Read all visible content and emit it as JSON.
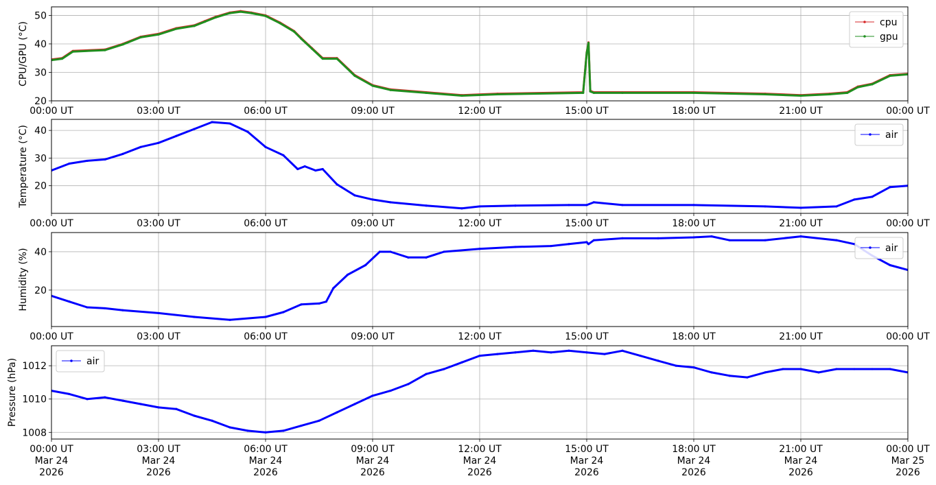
{
  "chart_data": [
    {
      "type": "line",
      "ylabel": "CPU/GPU (°C)",
      "ylim": [
        20,
        53
      ],
      "yticks": [
        20,
        30,
        40,
        50
      ],
      "grid": true,
      "legend_position": "top-right",
      "x_tick_labels": [
        [
          "00:00 UT"
        ],
        [
          "03:00 UT"
        ],
        [
          "06:00 UT"
        ],
        [
          "09:00 UT"
        ],
        [
          "12:00 UT"
        ],
        [
          "15:00 UT"
        ],
        [
          "18:00 UT"
        ],
        [
          "21:00 UT"
        ],
        [
          "00:00 UT"
        ]
      ],
      "x_hours": [
        0,
        0.3,
        0.6,
        1.5,
        2.0,
        2.5,
        3.0,
        3.5,
        4.0,
        4.3,
        4.6,
        5.0,
        5.3,
        5.6,
        6.0,
        6.4,
        6.8,
        7.0,
        7.3,
        7.6,
        8.0,
        8.5,
        9.0,
        9.5,
        10.5,
        11.5,
        12.5,
        14.9,
        15.0,
        15.05,
        15.1,
        15.2,
        16.0,
        18.0,
        20.0,
        21.0,
        21.8,
        22.3,
        22.6,
        23.0,
        23.5,
        24.0
      ],
      "series": [
        {
          "name": "cpu",
          "color": "#d62728",
          "values": [
            34.5,
            35,
            37.5,
            38,
            40,
            42.5,
            43.5,
            45.5,
            46.5,
            48,
            49.5,
            51,
            51.5,
            51,
            50,
            47.5,
            44.5,
            42,
            38.5,
            35,
            35,
            29,
            25.5,
            24,
            23,
            22,
            22.5,
            23,
            37,
            40.5,
            23.5,
            23,
            23,
            23,
            22.5,
            22,
            22.5,
            23,
            25,
            26,
            29,
            29.5
          ]
        },
        {
          "name": "gpu",
          "color": "#1f8f1f",
          "values": [
            34.3,
            34.8,
            37.3,
            37.8,
            39.8,
            42.3,
            43.3,
            45.3,
            46.3,
            47.8,
            49.3,
            50.8,
            51.3,
            50.8,
            49.8,
            47.3,
            44.3,
            41.8,
            38.3,
            34.8,
            34.8,
            28.8,
            25.3,
            23.8,
            22.8,
            21.8,
            22.3,
            22.8,
            36.8,
            40.3,
            23.3,
            22.8,
            22.8,
            22.8,
            22.3,
            21.8,
            22.3,
            22.8,
            24.8,
            25.8,
            28.8,
            29.3
          ]
        }
      ]
    },
    {
      "type": "line",
      "ylabel": "Temperature (°C)",
      "ylim": [
        10,
        44
      ],
      "yticks": [
        20,
        30,
        40
      ],
      "grid": true,
      "legend_position": "top-right",
      "x_tick_labels": [
        [
          "00:00 UT"
        ],
        [
          "03:00 UT"
        ],
        [
          "06:00 UT"
        ],
        [
          "09:00 UT"
        ],
        [
          "12:00 UT"
        ],
        [
          "15:00 UT"
        ],
        [
          "18:00 UT"
        ],
        [
          "21:00 UT"
        ],
        [
          "00:00 UT"
        ]
      ],
      "x_hours": [
        0,
        0.5,
        1.0,
        1.5,
        2.0,
        2.5,
        3.0,
        3.5,
        4.0,
        4.5,
        5.0,
        5.5,
        6.0,
        6.5,
        6.9,
        7.1,
        7.4,
        7.6,
        8.0,
        8.5,
        9.0,
        9.5,
        10.5,
        11.5,
        12.0,
        13.0,
        14.5,
        15.0,
        15.2,
        16.0,
        18.0,
        20.0,
        21.0,
        22.0,
        22.5,
        23.0,
        23.5,
        24.0
      ],
      "series": [
        {
          "name": "air",
          "color": "#0000ff",
          "values": [
            25.5,
            28,
            29,
            29.5,
            31.5,
            34,
            35.5,
            38,
            40.5,
            43,
            42.5,
            39.5,
            34,
            31,
            26,
            27,
            25.5,
            26,
            20.5,
            16.5,
            15,
            14,
            12.8,
            11.8,
            12.5,
            12.8,
            13,
            13,
            14,
            13,
            13,
            12.5,
            12,
            12.5,
            15,
            16,
            19.5,
            20
          ]
        }
      ]
    },
    {
      "type": "line",
      "ylabel": "Humidity (%)",
      "ylim": [
        1,
        50
      ],
      "yticks": [
        20,
        40
      ],
      "grid": true,
      "legend_position": "top-right",
      "x_tick_labels": [
        [
          "00:00 UT"
        ],
        [
          "03:00 UT"
        ],
        [
          "06:00 UT"
        ],
        [
          "09:00 UT"
        ],
        [
          "12:00 UT"
        ],
        [
          "15:00 UT"
        ],
        [
          "18:00 UT"
        ],
        [
          "21:00 UT"
        ],
        [
          "00:00 UT"
        ]
      ],
      "x_hours": [
        0,
        0.5,
        1.0,
        1.5,
        2.0,
        3.0,
        4.0,
        5.0,
        6.0,
        6.5,
        7.0,
        7.5,
        7.7,
        7.9,
        8.3,
        8.8,
        9.2,
        9.5,
        10.0,
        10.5,
        11.0,
        12.0,
        13.0,
        14.0,
        14.5,
        15.0,
        15.05,
        15.2,
        16.0,
        17.0,
        18.0,
        18.5,
        19.0,
        20.0,
        21.0,
        22.0,
        22.5,
        23.0,
        23.5,
        24.0
      ],
      "series": [
        {
          "name": "air",
          "color": "#0000ff",
          "values": [
            17,
            14,
            11,
            10.5,
            9.5,
            8,
            6,
            4.5,
            6,
            8.5,
            12.5,
            13,
            14,
            21,
            28,
            33,
            40,
            40,
            37,
            37,
            40,
            41.5,
            42.5,
            43,
            44,
            45,
            44,
            46,
            47,
            47,
            47.5,
            48,
            46,
            46,
            48,
            46,
            44,
            38,
            33,
            30.5
          ]
        }
      ]
    },
    {
      "type": "line",
      "ylabel": "Pressure (hPa)",
      "ylim": [
        1007.6,
        1013.2
      ],
      "yticks": [
        1008,
        1010,
        1012
      ],
      "grid": true,
      "legend_position": "top-left",
      "x_tick_labels": [
        [
          "00:00 UT",
          "Mar 24",
          "2026"
        ],
        [
          "03:00 UT",
          "Mar 24",
          "2026"
        ],
        [
          "06:00 UT",
          "Mar 24",
          "2026"
        ],
        [
          "09:00 UT",
          "Mar 24",
          "2026"
        ],
        [
          "12:00 UT",
          "Mar 24",
          "2026"
        ],
        [
          "15:00 UT",
          "Mar 24",
          "2026"
        ],
        [
          "18:00 UT",
          "Mar 24",
          "2026"
        ],
        [
          "21:00 UT",
          "Mar 24",
          "2026"
        ],
        [
          "00:00 UT",
          "Mar 25",
          "2026"
        ]
      ],
      "x_hours": [
        0,
        0.5,
        1.0,
        1.5,
        2.0,
        2.5,
        3.0,
        3.5,
        4.0,
        4.5,
        5.0,
        5.5,
        6.0,
        6.5,
        7.0,
        7.5,
        8.0,
        8.5,
        9.0,
        9.5,
        10.0,
        10.5,
        11.0,
        11.5,
        12.0,
        12.5,
        13.0,
        13.5,
        14.0,
        14.5,
        15.0,
        15.5,
        16.0,
        16.5,
        17.0,
        17.5,
        18.0,
        18.5,
        19.0,
        19.5,
        20.0,
        20.5,
        21.0,
        21.5,
        22.0,
        22.5,
        23.0,
        23.5,
        24.0
      ],
      "series": [
        {
          "name": "air",
          "color": "#0000ff",
          "values": [
            1010.5,
            1010.3,
            1010.0,
            1010.1,
            1009.9,
            1009.7,
            1009.5,
            1009.4,
            1009.0,
            1008.7,
            1008.3,
            1008.1,
            1008.0,
            1008.1,
            1008.4,
            1008.7,
            1009.2,
            1009.7,
            1010.2,
            1010.5,
            1010.9,
            1011.5,
            1011.8,
            1012.2,
            1012.6,
            1012.7,
            1012.8,
            1012.9,
            1012.8,
            1012.9,
            1012.8,
            1012.7,
            1012.9,
            1012.6,
            1012.3,
            1012.0,
            1011.9,
            1011.6,
            1011.4,
            1011.3,
            1011.6,
            1011.8,
            1011.8,
            1011.6,
            1011.8,
            1011.8,
            1011.8,
            1011.8,
            1011.6
          ]
        }
      ]
    }
  ]
}
